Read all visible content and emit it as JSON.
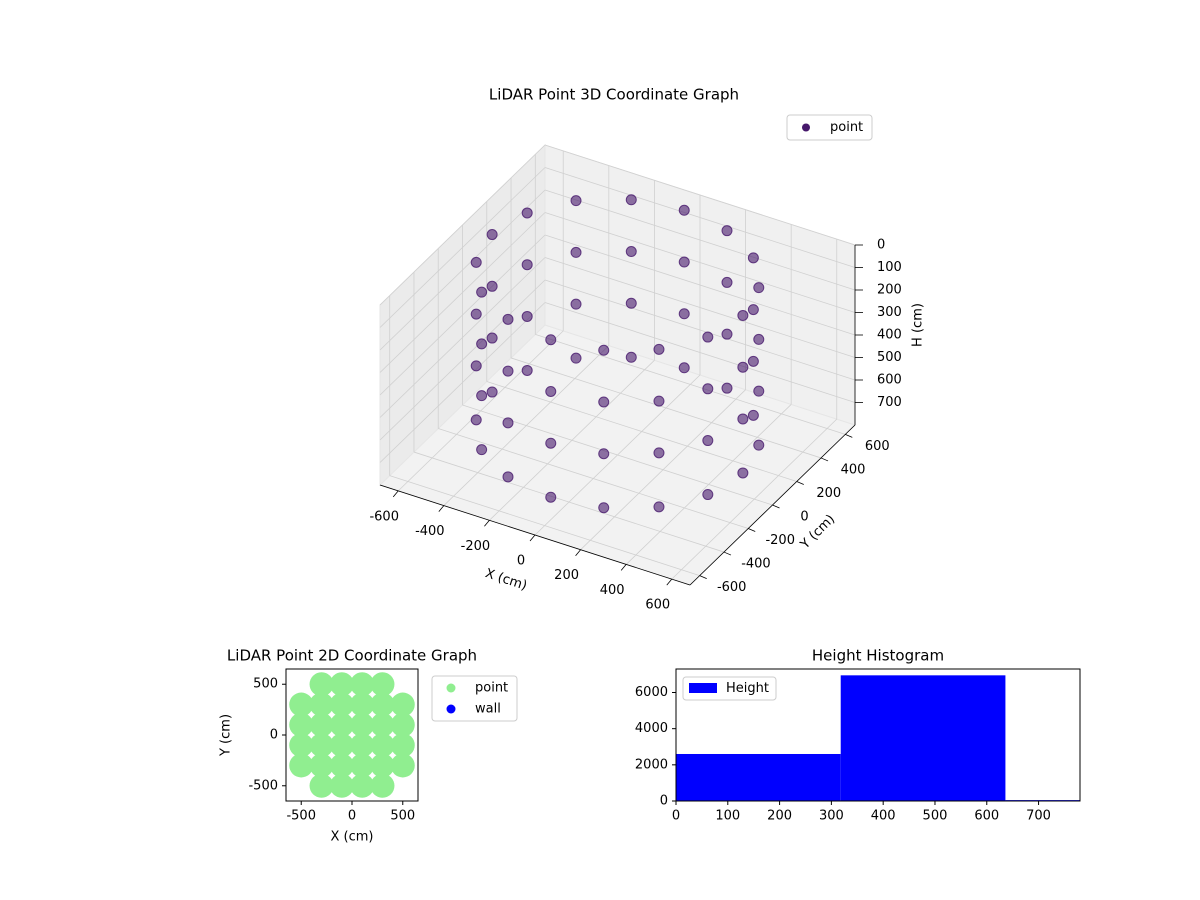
{
  "chart_data": [
    {
      "type": "scatter3d",
      "title": "LiDAR Point 3D Coordinate Graph",
      "xlabel": "X (cm)",
      "ylabel": "Y (cm)",
      "zlabel": "H (cm)",
      "xlim": [
        -680,
        680
      ],
      "ylim": [
        -680,
        680
      ],
      "zlim": [
        800,
        0
      ],
      "xticks": [
        -600,
        -400,
        -200,
        0,
        200,
        400,
        600
      ],
      "yticks": [
        -600,
        -400,
        -200,
        0,
        200,
        400,
        600
      ],
      "zticks": [
        0,
        100,
        200,
        300,
        400,
        500,
        600,
        700
      ],
      "legend": "upper right",
      "series": [
        {
          "name": "point",
          "color": "#46186b",
          "x": [
            550,
            508,
            389,
            210,
            0,
            -210,
            -389,
            -508,
            -550,
            -508,
            -389,
            -210,
            0,
            210,
            389,
            508,
            550,
            508,
            389,
            210,
            0,
            -210,
            -389,
            -508,
            -550,
            -508,
            -389,
            -210,
            0,
            210,
            389,
            508,
            550,
            508,
            389,
            210,
            0,
            -210,
            -389,
            -508,
            -550,
            -508,
            -389,
            -210,
            0,
            210,
            389,
            508,
            550,
            508,
            389,
            210,
            0,
            -210,
            -389,
            -508,
            -550,
            -508,
            -389,
            -210,
            0,
            210,
            389,
            508
          ],
          "y": [
            0,
            210,
            389,
            508,
            550,
            508,
            389,
            210,
            0,
            -210,
            -389,
            -508,
            -550,
            -508,
            -389,
            -210,
            0,
            210,
            389,
            508,
            550,
            508,
            389,
            210,
            0,
            -210,
            -389,
            -508,
            -550,
            -508,
            -389,
            -210,
            0,
            210,
            389,
            508,
            550,
            508,
            389,
            210,
            0,
            -210,
            -389,
            -508,
            -550,
            -508,
            -389,
            -210,
            0,
            210,
            389,
            508,
            550,
            508,
            389,
            210,
            0,
            -210,
            -389,
            -508,
            -550,
            -508,
            -389,
            -210
          ],
          "z": [
            0,
            0,
            0,
            0,
            0,
            0,
            0,
            0,
            0,
            0,
            0,
            0,
            0,
            0,
            0,
            0,
            230,
            230,
            230,
            230,
            230,
            230,
            230,
            230,
            230,
            230,
            230,
            230,
            230,
            230,
            230,
            230,
            460,
            460,
            460,
            460,
            460,
            460,
            460,
            460,
            460,
            460,
            460,
            460,
            460,
            460,
            460,
            460,
            700,
            700,
            700,
            700,
            700,
            700,
            700,
            700,
            700,
            700,
            700,
            700,
            700,
            700,
            700,
            700
          ]
        }
      ]
    },
    {
      "type": "scatter",
      "title": "LiDAR Point 2D Coordinate Graph",
      "xlabel": "X (cm)",
      "ylabel": "Y (cm)",
      "xlim": [
        -650,
        650
      ],
      "ylim": [
        -650,
        650
      ],
      "xticks": [
        -500,
        0,
        500
      ],
      "yticks": [
        -500,
        0,
        500
      ],
      "legend": "outside upper right",
      "series": [
        {
          "name": "point",
          "color": "#90ee90",
          "x": [
            -300,
            -100,
            100,
            300,
            -500,
            -300,
            -100,
            100,
            300,
            500,
            -500,
            -300,
            -100,
            100,
            300,
            500,
            -500,
            -300,
            -100,
            100,
            300,
            500,
            -500,
            -300,
            -100,
            100,
            300,
            500,
            -300,
            -100,
            100,
            300
          ],
          "y": [
            500,
            500,
            500,
            500,
            300,
            300,
            300,
            300,
            300,
            300,
            100,
            100,
            100,
            100,
            100,
            100,
            -100,
            -100,
            -100,
            -100,
            -100,
            -100,
            -300,
            -300,
            -300,
            -300,
            -300,
            -300,
            -500,
            -500,
            -500,
            -500
          ]
        },
        {
          "name": "wall",
          "color": "#0000ff",
          "x": [],
          "y": []
        }
      ]
    },
    {
      "type": "histogram",
      "title": "Height Histogram",
      "bins": [
        0,
        318,
        636,
        954
      ],
      "counts": [
        2600,
        6950,
        50
      ],
      "color": "#0000ff",
      "name": "Height",
      "legend": "upper left",
      "xlim": [
        0,
        780
      ],
      "ylim": [
        0,
        7300
      ],
      "xticks": [
        0,
        100,
        200,
        300,
        400,
        500,
        600,
        700
      ],
      "yticks": [
        0,
        2000,
        4000,
        6000
      ]
    }
  ]
}
